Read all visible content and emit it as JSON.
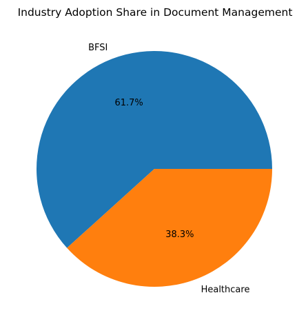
{
  "chart_data": {
    "type": "pie",
    "title": "Industry Adoption Share in Document Management",
    "categories": [
      "BFSI",
      "Healthcare"
    ],
    "values": [
      61.7,
      38.3
    ],
    "percent_labels": [
      "61.7%",
      "38.3%"
    ],
    "colors": [
      "#1f77b4",
      "#ff7f0e"
    ],
    "start_angle_deg": 0,
    "direction": "counterclockwise",
    "legend": "none"
  }
}
